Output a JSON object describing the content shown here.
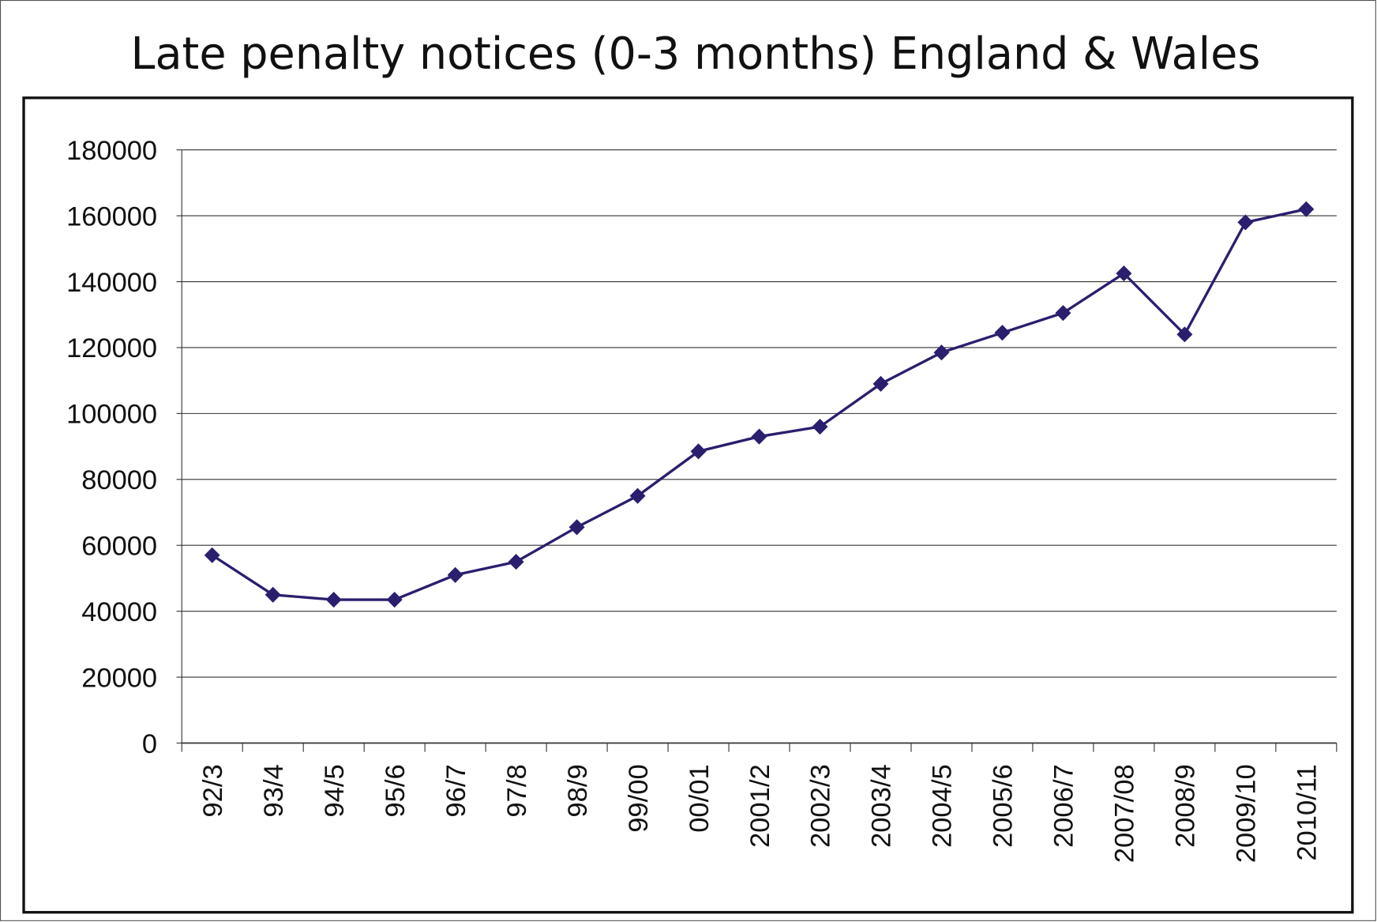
{
  "chart_data": {
    "type": "line",
    "title": "Late penalty notices (0-3 months) England & Wales",
    "xlabel": "",
    "ylabel": "",
    "ylim": [
      0,
      180000
    ],
    "yticks": [
      "0",
      "20000",
      "40000",
      "60000",
      "80000",
      "100000",
      "120000",
      "140000",
      "160000",
      "180000"
    ],
    "ytick_values": [
      0,
      20000,
      40000,
      60000,
      80000,
      100000,
      120000,
      140000,
      160000,
      180000
    ],
    "categories": [
      "92/3",
      "93/4",
      "94/5",
      "95/6",
      "96/7",
      "97/8",
      "98/9",
      "99/00",
      "00/01",
      "2001/2",
      "2002/3",
      "2003/4",
      "2004/5",
      "2005/6",
      "2006/7",
      "2007/08",
      "2008/9",
      "2009/10",
      "2010/11"
    ],
    "values": [
      57000,
      45000,
      43500,
      43500,
      51000,
      55000,
      65500,
      75000,
      88500,
      93000,
      96000,
      109000,
      118500,
      124500,
      130500,
      142500,
      124000,
      158000,
      162000
    ],
    "grid": true,
    "legend": "none",
    "series_color": "#2a1f6e"
  }
}
